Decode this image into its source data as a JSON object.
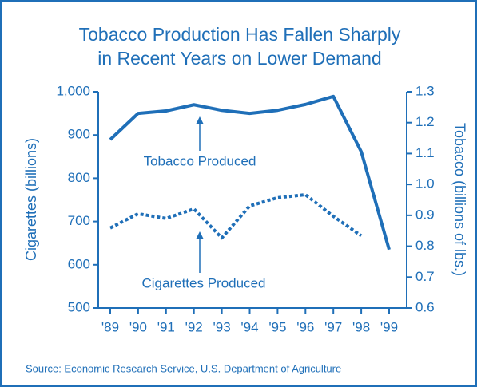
{
  "chart_data": {
    "type": "line",
    "title": "Tobacco Production Has Fallen Sharply",
    "subtitle": "in Recent Years on Lower Demand",
    "categories": [
      "'89",
      "'90",
      "'91",
      "'92",
      "'93",
      "'94",
      "'95",
      "'96",
      "'97",
      "'98",
      "'99"
    ],
    "series": [
      {
        "name": "Tobacco Produced",
        "color": "#1f6fb8",
        "axis": "y2",
        "style": "solid",
        "values": [
          1.145,
          1.23,
          1.238,
          1.258,
          1.24,
          1.23,
          1.24,
          1.259,
          1.285,
          1.106,
          0.789
        ]
      },
      {
        "name": "Cigarettes Produced",
        "color": "#1f6fb8",
        "axis": "y",
        "style": "dotted",
        "values": [
          685,
          718,
          707,
          729,
          662,
          736,
          755,
          762,
          712,
          667,
          null
        ]
      }
    ],
    "ylabel": "Cigarettes (billions)",
    "y2label": "Tobacco (billions of lbs.)",
    "ylim": [
      500,
      1000
    ],
    "yticks": [
      500,
      600,
      700,
      800,
      900,
      {
        "value": 1000,
        "label": "1,000"
      }
    ],
    "y2lim": [
      0.6,
      1.3
    ],
    "y2ticks": [
      {
        "value": 0.6,
        "label": "0.6"
      },
      {
        "value": 0.7,
        "label": "0.7"
      },
      {
        "value": 0.8,
        "label": "0.8"
      },
      {
        "value": 0.9,
        "label": "0.9"
      },
      {
        "value": 1.0,
        "label": "1.0"
      },
      {
        "value": 1.1,
        "label": "1.1"
      },
      {
        "value": 1.2,
        "label": "1.2"
      },
      {
        "value": 1.3,
        "label": "1.3"
      }
    ],
    "source": "Source: Economic Research Service, U.S. Department of Agriculture"
  }
}
